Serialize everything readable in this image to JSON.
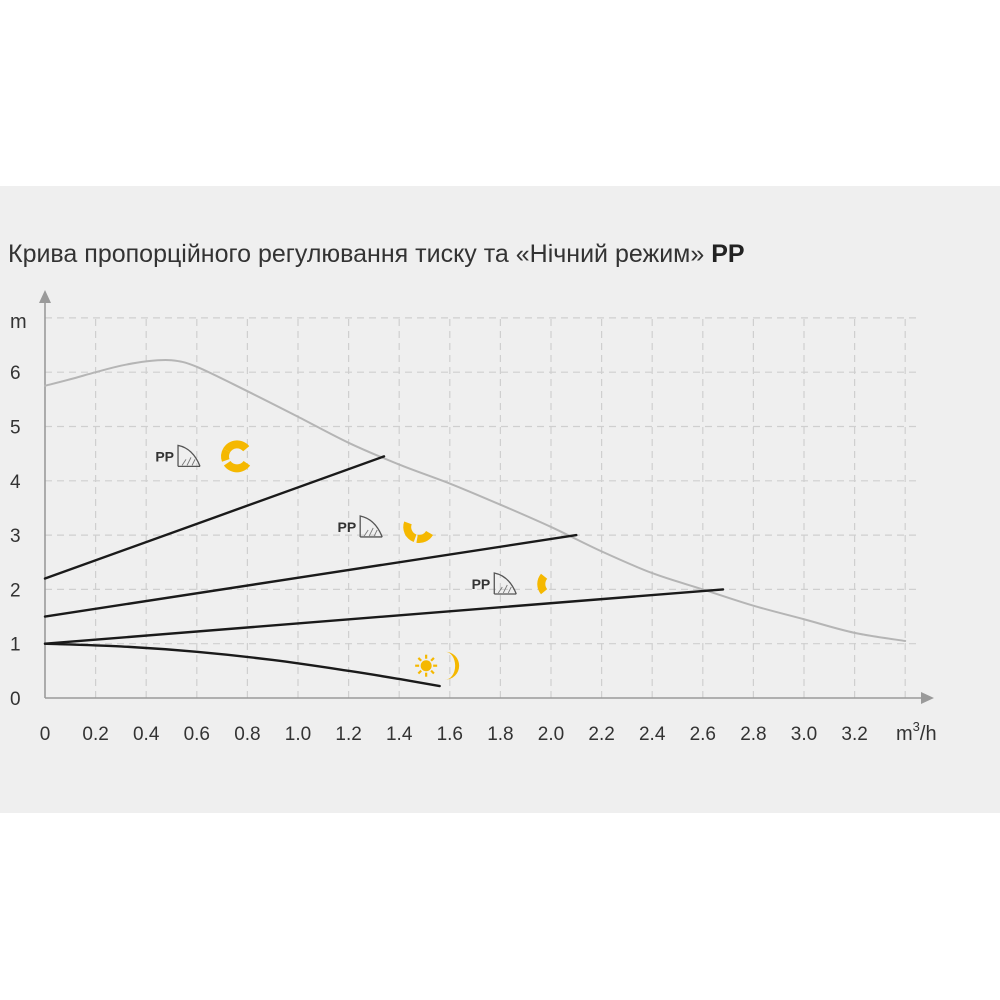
{
  "chart_data": {
    "type": "line",
    "title": "Крива пропорційного регулювання тиску та «Нічний режим»",
    "title_bold": "PP",
    "ylabel": "m",
    "xlabel_base": "m",
    "xlabel_sup": "3",
    "xlabel_tail": "/h",
    "xlim": [
      0,
      3.4
    ],
    "ylim": [
      0,
      7
    ],
    "grid": true,
    "x_ticks": [
      "0",
      "0.2",
      "0.4",
      "0.6",
      "0.8",
      "1.0",
      "1.2",
      "1.4",
      "1.6",
      "1.8",
      "2.0",
      "2.2",
      "2.4",
      "2.6",
      "2.8",
      "3.0",
      "3.2"
    ],
    "y_ticks": [
      "0",
      "1",
      "2",
      "3",
      "4",
      "5",
      "6"
    ],
    "colors": {
      "max_curve": "#b5b5b5",
      "pp_line": "#1a1a1a",
      "icon": "#f5b800",
      "grid": "#cfcfcf"
    },
    "series": [
      {
        "role": "max-curve",
        "x": [
          0,
          0.1,
          0.2,
          0.3,
          0.4,
          0.5,
          0.6,
          0.8,
          1.0,
          1.2,
          1.4,
          1.6,
          1.8,
          2.0,
          2.2,
          2.4,
          2.6,
          2.8,
          3.0,
          3.2,
          3.4
        ],
        "y": [
          5.75,
          5.87,
          6.0,
          6.12,
          6.2,
          6.22,
          6.1,
          5.65,
          5.18,
          4.7,
          4.3,
          3.95,
          3.56,
          3.15,
          2.7,
          2.3,
          2.0,
          1.7,
          1.45,
          1.2,
          1.05
        ]
      },
      {
        "role": "pp-high",
        "x": [
          0,
          1.34
        ],
        "y": [
          2.2,
          4.45
        ]
      },
      {
        "role": "pp-mid",
        "x": [
          0,
          2.1
        ],
        "y": [
          1.5,
          3.0
        ]
      },
      {
        "role": "pp-low",
        "x": [
          0,
          2.68
        ],
        "y": [
          1.0,
          2.0
        ]
      },
      {
        "role": "night-mode",
        "x": [
          0,
          0.3,
          0.6,
          0.9,
          1.2,
          1.4,
          1.56
        ],
        "y": [
          1.0,
          0.95,
          0.85,
          0.7,
          0.5,
          0.35,
          0.22
        ]
      }
    ],
    "annotations": [
      {
        "text": "PP",
        "icon": "pump-curve-icon",
        "speed_icon": "speed-3-icon",
        "x": 0.51,
        "y": 4.45
      },
      {
        "text": "PP",
        "icon": "pump-curve-icon",
        "speed_icon": "speed-2-icon",
        "x": 1.23,
        "y": 3.15
      },
      {
        "text": "PP",
        "icon": "pump-curve-icon",
        "speed_icon": "speed-1-icon",
        "x": 1.76,
        "y": 2.1
      },
      {
        "icon": "night-mode-icon",
        "x": 1.55,
        "y": 0.65
      }
    ]
  }
}
